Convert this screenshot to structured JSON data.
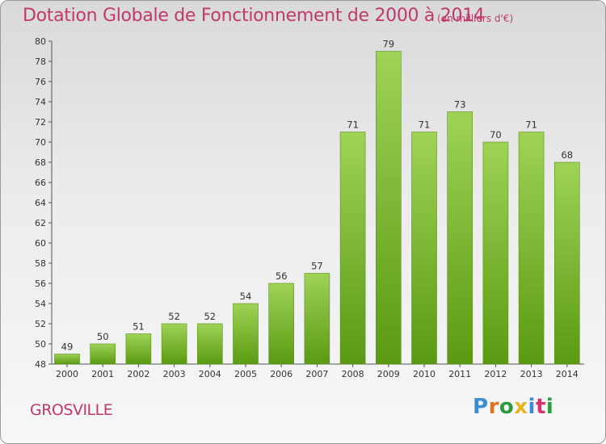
{
  "chart_data": {
    "type": "bar",
    "title": "Dotation Globale de Fonctionnement de 2000 à 2014",
    "subtitle": "(en milliers d'€)",
    "categories": [
      "2000",
      "2001",
      "2002",
      "2003",
      "2004",
      "2005",
      "2006",
      "2007",
      "2008",
      "2009",
      "2010",
      "2011",
      "2012",
      "2013",
      "2014"
    ],
    "values": [
      49,
      50,
      51,
      52,
      52,
      54,
      56,
      57,
      71,
      79,
      71,
      73,
      70,
      71,
      68
    ],
    "ylim": [
      48,
      80
    ],
    "yticks": [
      48,
      50,
      52,
      54,
      56,
      58,
      60,
      62,
      64,
      66,
      68,
      70,
      72,
      74,
      76,
      78,
      80
    ],
    "grid": false,
    "colors": {
      "bar_top": "#9fd357",
      "bar_bottom": "#5a9a12",
      "title": "#c0396b",
      "axis": "#555555"
    }
  },
  "footer": {
    "place": "GROSVILLE",
    "brand": "Proxiti"
  }
}
